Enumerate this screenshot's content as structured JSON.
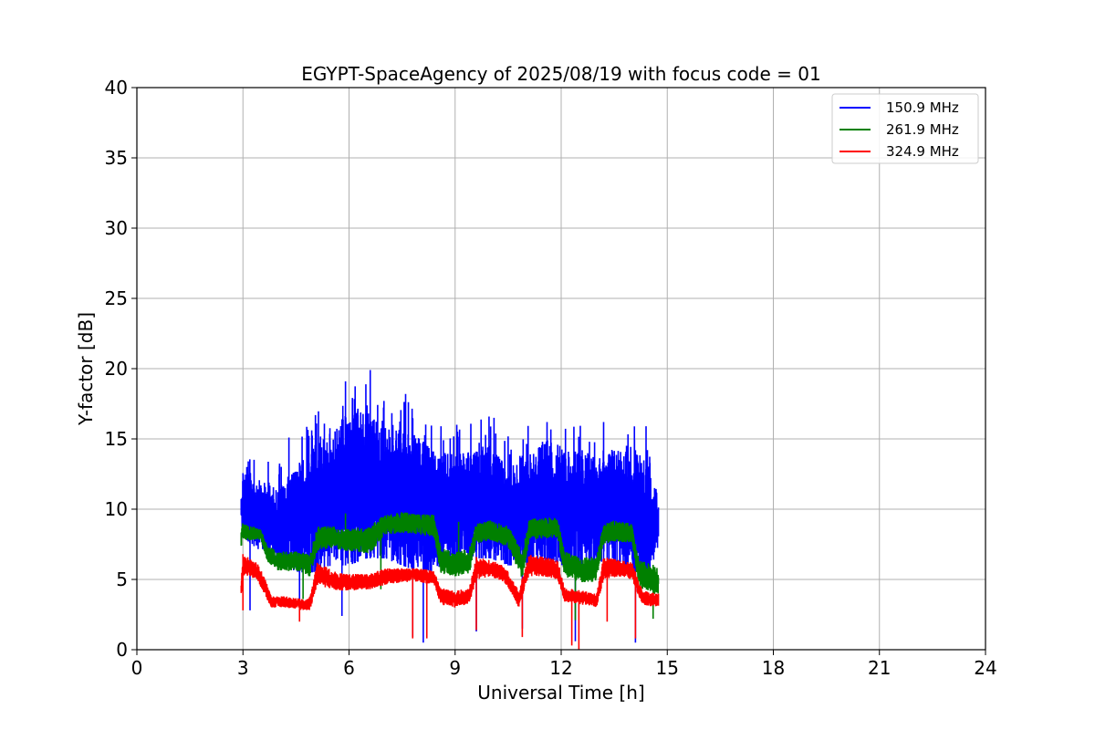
{
  "chart_data": {
    "type": "line",
    "title": "EGYPT-SpaceAgency of 2025/08/19 with focus code = 01",
    "xlabel": "Universal Time [h]",
    "ylabel": "Y-factor [dB]",
    "xlim": [
      0,
      24
    ],
    "ylim": [
      0,
      40
    ],
    "xticks": [
      0,
      3,
      6,
      9,
      12,
      15,
      18,
      21,
      24
    ],
    "yticks": [
      0,
      5,
      10,
      15,
      20,
      25,
      30,
      35,
      40
    ],
    "grid": true,
    "legend_position": "top-right",
    "x_start": 2.95,
    "x_end": 14.75,
    "series": [
      {
        "name": "150.9 MHz",
        "color": "#0000ff",
        "x": [
          2.95,
          3.0,
          3.5,
          4.0,
          4.5,
          5.0,
          5.5,
          6.0,
          6.5,
          7.0,
          7.5,
          8.0,
          8.5,
          9.0,
          9.5,
          10.0,
          10.5,
          11.0,
          11.5,
          12.0,
          12.5,
          13.0,
          13.5,
          14.0,
          14.5,
          14.75
        ],
        "low": [
          9.0,
          8.0,
          7.0,
          6.0,
          5.5,
          5.5,
          6.0,
          6.0,
          6.5,
          6.5,
          6.0,
          5.5,
          5.5,
          6.0,
          6.5,
          6.5,
          6.0,
          6.0,
          6.0,
          6.0,
          6.0,
          6.0,
          6.0,
          5.5,
          5.5,
          7.0
        ],
        "high": [
          11.0,
          13.0,
          12.0,
          11.5,
          13.0,
          14.5,
          15.5,
          17.0,
          17.0,
          16.0,
          16.0,
          15.0,
          14.0,
          14.0,
          14.0,
          14.5,
          13.0,
          14.0,
          15.0,
          14.5,
          14.0,
          14.0,
          14.5,
          14.5,
          13.0,
          11.0
        ],
        "peaks": [
          [
            3.15,
            13.4
          ],
          [
            4.3,
            15.1
          ],
          [
            5.05,
            16.7
          ],
          [
            5.9,
            19.1
          ],
          [
            6.6,
            19.9
          ],
          [
            7.6,
            18.2
          ],
          [
            8.6,
            15.2
          ],
          [
            10.1,
            16.5
          ],
          [
            11.6,
            16.2
          ],
          [
            12.8,
            14.8
          ],
          [
            14.4,
            15.9
          ]
        ],
        "dips": [
          [
            3.2,
            2.8
          ],
          [
            4.6,
            3.0
          ],
          [
            5.8,
            2.4
          ],
          [
            7.8,
            0.9
          ],
          [
            8.1,
            0.5
          ],
          [
            9.6,
            1.3
          ],
          [
            10.9,
            1.5
          ],
          [
            12.4,
            0.6
          ],
          [
            14.1,
            0.5
          ]
        ]
      },
      {
        "name": "261.9 MHz",
        "color": "#008000",
        "x": [
          2.95,
          3.0,
          3.5,
          3.7,
          4.0,
          4.5,
          4.9,
          5.1,
          5.5,
          6.0,
          6.6,
          7.0,
          7.5,
          8.0,
          8.4,
          8.6,
          9.0,
          9.4,
          9.6,
          10.0,
          10.5,
          10.9,
          11.1,
          11.5,
          11.9,
          12.1,
          12.5,
          13.0,
          13.2,
          13.5,
          14.0,
          14.2,
          14.5,
          14.75
        ],
        "low": [
          7.0,
          7.8,
          7.8,
          6.2,
          5.6,
          5.6,
          5.2,
          7.0,
          7.2,
          7.0,
          6.8,
          8.2,
          8.3,
          8.2,
          8.0,
          5.4,
          5.2,
          5.4,
          7.5,
          7.8,
          7.3,
          5.0,
          7.8,
          7.9,
          8.0,
          5.2,
          4.8,
          4.8,
          7.5,
          7.7,
          7.6,
          4.5,
          4.0,
          3.8
        ],
        "high": [
          9.0,
          9.0,
          8.6,
          7.4,
          7.0,
          7.0,
          6.8,
          8.8,
          8.8,
          8.6,
          8.8,
          9.6,
          9.8,
          9.7,
          9.6,
          7.2,
          7.0,
          7.2,
          9.0,
          9.2,
          8.8,
          7.0,
          9.3,
          9.4,
          9.4,
          7.0,
          6.6,
          6.6,
          9.0,
          9.2,
          9.0,
          6.4,
          6.2,
          5.8
        ],
        "peaks": [
          [
            5.9,
            9.7
          ],
          [
            9.1,
            9.1
          ]
        ],
        "dips": [
          [
            4.7,
            3.6
          ],
          [
            6.9,
            4.3
          ],
          [
            12.4,
            2.1
          ],
          [
            14.6,
            2.2
          ]
        ]
      },
      {
        "name": "324.9 MHz",
        "color": "#ff0000",
        "x": [
          2.95,
          3.0,
          3.4,
          3.6,
          3.8,
          4.2,
          4.7,
          4.9,
          5.1,
          5.6,
          6.0,
          6.6,
          7.0,
          7.5,
          8.0,
          8.4,
          8.6,
          9.0,
          9.4,
          9.6,
          10.0,
          10.4,
          10.8,
          11.1,
          11.5,
          11.9,
          12.1,
          12.6,
          13.0,
          13.2,
          13.6,
          14.0,
          14.3,
          14.75
        ],
        "low": [
          3.5,
          5.2,
          5.0,
          4.0,
          3.0,
          3.0,
          2.8,
          2.8,
          4.6,
          4.2,
          4.2,
          4.3,
          4.6,
          4.8,
          4.8,
          4.6,
          3.2,
          3.0,
          3.2,
          5.0,
          5.2,
          4.8,
          3.0,
          5.2,
          5.2,
          5.0,
          3.4,
          3.2,
          3.0,
          5.0,
          5.2,
          5.0,
          3.2,
          3.0
        ],
        "high": [
          4.8,
          6.8,
          6.2,
          5.2,
          3.8,
          3.8,
          3.6,
          3.8,
          6.2,
          5.6,
          5.4,
          5.4,
          5.8,
          5.8,
          5.8,
          5.6,
          4.4,
          4.2,
          4.4,
          6.6,
          6.4,
          6.0,
          4.2,
          6.8,
          6.6,
          6.4,
          4.4,
          4.2,
          4.0,
          6.6,
          6.4,
          6.2,
          4.2,
          4.0
        ],
        "peaks": [],
        "dips": [
          [
            3.0,
            2.8
          ],
          [
            4.6,
            2.0
          ],
          [
            7.8,
            0.8
          ],
          [
            8.2,
            0.8
          ],
          [
            9.6,
            1.4
          ],
          [
            10.9,
            0.9
          ],
          [
            12.3,
            0.3
          ],
          [
            12.5,
            0.0
          ],
          [
            13.3,
            2.0
          ],
          [
            14.1,
            0.8
          ]
        ]
      }
    ]
  }
}
